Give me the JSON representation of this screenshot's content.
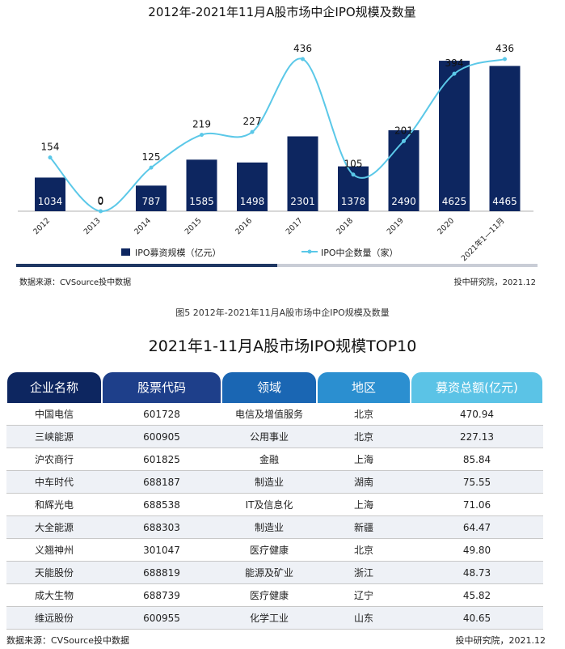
{
  "chart_data": {
    "type": "bar",
    "title": "2012年-2021年11月A股市场中企IPO规模及数量",
    "categories": [
      "2012",
      "2013",
      "2014",
      "2015",
      "2016",
      "2017",
      "2018",
      "2019",
      "2020",
      "2021年1—11月"
    ],
    "series": [
      {
        "name": "IPO募资规模（亿元）",
        "type": "bar",
        "values": [
          1034,
          0,
          787,
          1585,
          1498,
          2301,
          1378,
          2490,
          4625,
          4465
        ],
        "color": "#0d2660"
      },
      {
        "name": "IPO中企数量（家）",
        "type": "line",
        "values": [
          154,
          0,
          125,
          219,
          227,
          436,
          105,
          201,
          394,
          436
        ],
        "color": "#5bc8e8"
      }
    ],
    "bar_ylim": [
      0,
      5000
    ],
    "line_ylim": [
      0,
      450
    ],
    "legend_position": "bottom",
    "grid": false
  },
  "source_left": "数据来源：CVSource投中数据",
  "source_right": "投中研究院，2021.12",
  "figure_caption": "图5 2012年-2021年11月A股市场中企IPO规模及数量",
  "table": {
    "title": "2021年1-11月A股市场IPO规模TOP10",
    "headers": [
      {
        "label": "企业名称",
        "color": "#0d2660"
      },
      {
        "label": "股票代码",
        "color": "#1e3f8a"
      },
      {
        "label": "领域",
        "color": "#1a66b3"
      },
      {
        "label": "地区",
        "color": "#2b8fd0"
      },
      {
        "label": "募资总额(亿元)",
        "color": "#5bc3e6"
      }
    ],
    "rows": [
      [
        "中国电信",
        "601728",
        "电信及增值服务",
        "北京",
        "470.94"
      ],
      [
        "三峡能源",
        "600905",
        "公用事业",
        "北京",
        "227.13"
      ],
      [
        "沪农商行",
        "601825",
        "金融",
        "上海",
        "85.84"
      ],
      [
        "中车时代",
        "688187",
        "制造业",
        "湖南",
        "75.55"
      ],
      [
        "和辉光电",
        "688538",
        "IT及信息化",
        "上海",
        "71.06"
      ],
      [
        "大全能源",
        "688303",
        "制造业",
        "新疆",
        "64.47"
      ],
      [
        "义翘神州",
        "301047",
        "医疗健康",
        "北京",
        "49.80"
      ],
      [
        "天能股份",
        "688819",
        "能源及矿业",
        "浙江",
        "48.73"
      ],
      [
        "成大生物",
        "688739",
        "医疗健康",
        "辽宁",
        "45.82"
      ],
      [
        "维远股份",
        "600955",
        "化学工业",
        "山东",
        "40.65"
      ]
    ],
    "source_left": "数据来源：CVSource投中数据",
    "source_right": "投中研究院，2021.12"
  }
}
